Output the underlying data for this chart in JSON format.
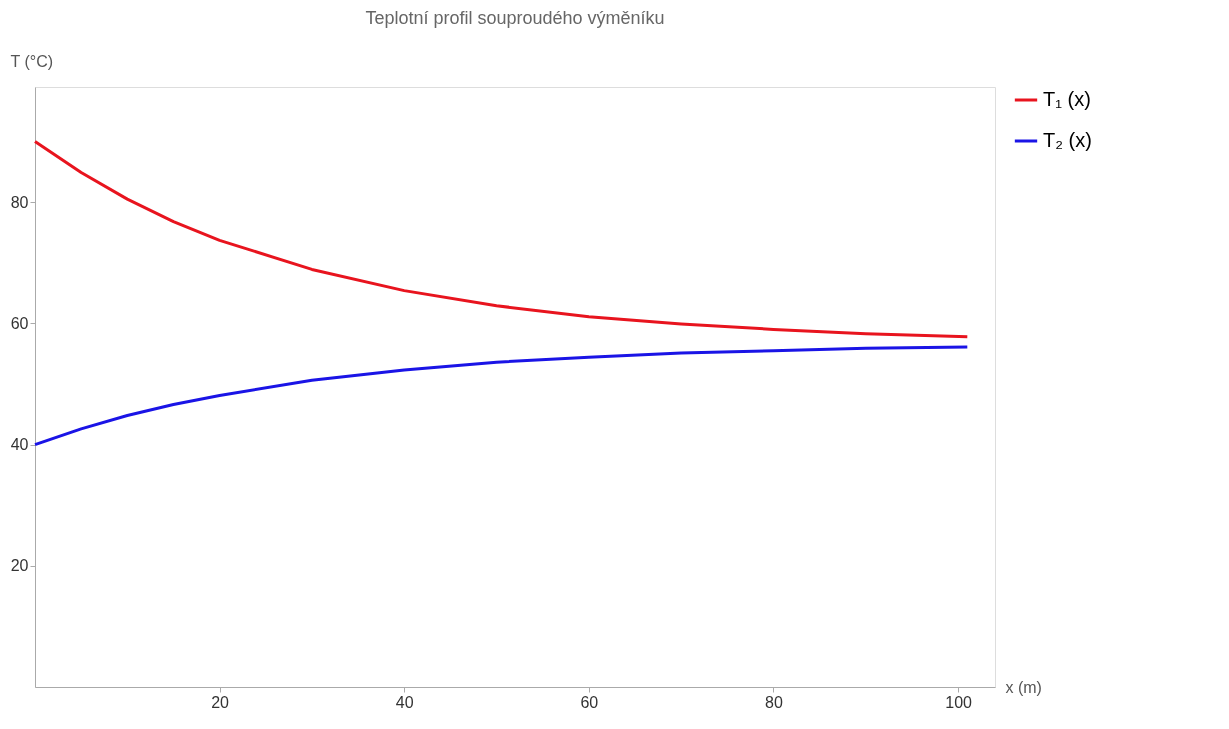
{
  "chart_data": {
    "type": "line",
    "title": "Teplotní profil souproudého výměníku",
    "xlabel": "x (m)",
    "ylabel": "T (°C)",
    "x": [
      0,
      5,
      10,
      15,
      20,
      30,
      40,
      50,
      60,
      70,
      80,
      90,
      101
    ],
    "series": [
      {
        "name": "T₁ (x)",
        "color": "#e8141e",
        "values": [
          90,
          84.9,
          80.5,
          76.8,
          73.7,
          68.9,
          65.4,
          62.9,
          61.1,
          59.9,
          59.0,
          58.3,
          57.8
        ]
      },
      {
        "name": "T₂ (x)",
        "color": "#1a14e6",
        "values": [
          40,
          42.6,
          44.8,
          46.6,
          48.1,
          50.6,
          52.3,
          53.6,
          54.4,
          55.1,
          55.5,
          55.9,
          56.1
        ]
      }
    ],
    "xlim": [
      0,
      104
    ],
    "ylim": [
      0,
      99
    ],
    "xticks": [
      20,
      40,
      60,
      80,
      100
    ],
    "yticks": [
      20,
      40,
      60,
      80
    ],
    "grid": false,
    "legend": "right",
    "marker": "none",
    "line_style": "solid"
  }
}
